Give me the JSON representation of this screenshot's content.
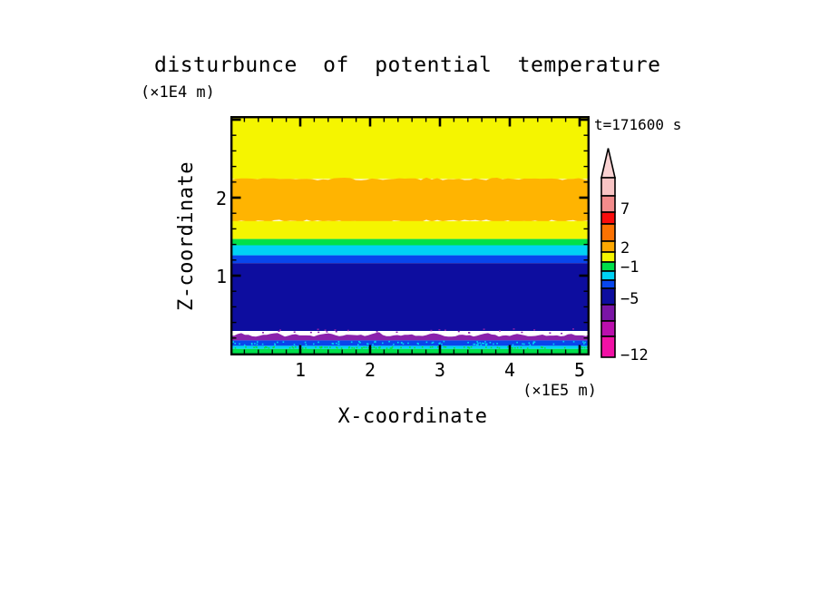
{
  "title": "disturbunce of potential temperature",
  "time_label": "t=171600 s",
  "axes": {
    "x": {
      "label": "X-coordinate",
      "unit": "(×1E5 m)",
      "tick_labels": [
        "1",
        "2",
        "3",
        "4",
        "5"
      ]
    },
    "z": {
      "label": "Z-coordinate",
      "unit": "(×1E4 m)",
      "tick_labels": [
        "1",
        "2"
      ]
    }
  },
  "colorbar": {
    "tip_color": "#FAD2D2",
    "segments": [
      {
        "color": "#F8C4C4",
        "h": 20
      },
      {
        "color": "#F28B8B",
        "h": 18
      },
      {
        "color": "#FB0D0D",
        "h": 13
      },
      {
        "color": "#FC7202",
        "h": 19
      },
      {
        "color": "#FFA801",
        "h": 12
      },
      {
        "color": "#F5F500",
        "h": 11
      },
      {
        "color": "#00E04A",
        "h": 10
      },
      {
        "color": "#00D2F5",
        "h": 10
      },
      {
        "color": "#0846EC",
        "h": 9
      },
      {
        "color": "#0D0D9F",
        "h": 18
      },
      {
        "color": "#7A15A5",
        "h": 18
      },
      {
        "color": "#BB0FAD",
        "h": 17
      },
      {
        "color": "#F111A5",
        "h": 23
      }
    ],
    "labels": [
      "7",
      "2",
      "−1",
      "−5",
      "−12"
    ]
  },
  "chart_data": {
    "type": "heatmap",
    "title": "disturbunce of potential temperature",
    "xlabel": "X-coordinate",
    "x_unit": "(×1E5 m)",
    "xlim": [
      0,
      5.14
    ],
    "x_ticks": [
      1,
      2,
      3,
      4,
      5
    ],
    "x_minor_step": 0.2,
    "ylabel": "Z-coordinate",
    "y_unit": "(×1E4 m)",
    "ylim": [
      0,
      3.07
    ],
    "y_ticks": [
      1,
      2
    ],
    "y_minor_step": 0.2,
    "time": "t=171600 s",
    "grid": false,
    "legend_position": "right",
    "labeled_levels": [
      7,
      2,
      -1,
      -5,
      -12
    ],
    "bands": [
      {
        "z_top": 3.07,
        "z_bottom": 2.24,
        "color": "#F5F500",
        "name": "yellow"
      },
      {
        "z_top": 2.24,
        "z_bottom": 1.7,
        "color": "#FFB401",
        "name": "orange",
        "edge": "jagged"
      },
      {
        "z_top": 1.7,
        "z_bottom": 1.47,
        "color": "#F5F500",
        "name": "yellow"
      },
      {
        "z_top": 1.47,
        "z_bottom": 1.39,
        "color": "#00E04A",
        "name": "green"
      },
      {
        "z_top": 1.39,
        "z_bottom": 1.26,
        "color": "#00D2F5",
        "name": "cyan"
      },
      {
        "z_top": 1.26,
        "z_bottom": 1.16,
        "color": "#0846EC",
        "name": "blue"
      },
      {
        "z_top": 1.16,
        "z_bottom": 0.29,
        "color": "#0D0D9F",
        "name": "navy"
      },
      {
        "z_top": 0.29,
        "z_bottom": 0.17,
        "color": "#8B22AC",
        "name": "purple",
        "edge": "bumpy"
      },
      {
        "z_top": 0.17,
        "z_bottom": 0.1,
        "color": "#0846EC",
        "name": "blue",
        "speckle": "#00D2F5"
      },
      {
        "z_top": 0.1,
        "z_bottom": 0.06,
        "color": "#00D2F5",
        "name": "cyan",
        "speckle": "#00E04A"
      },
      {
        "z_top": 0.06,
        "z_bottom": 0.0,
        "color": "#00E04A",
        "name": "green"
      }
    ]
  }
}
